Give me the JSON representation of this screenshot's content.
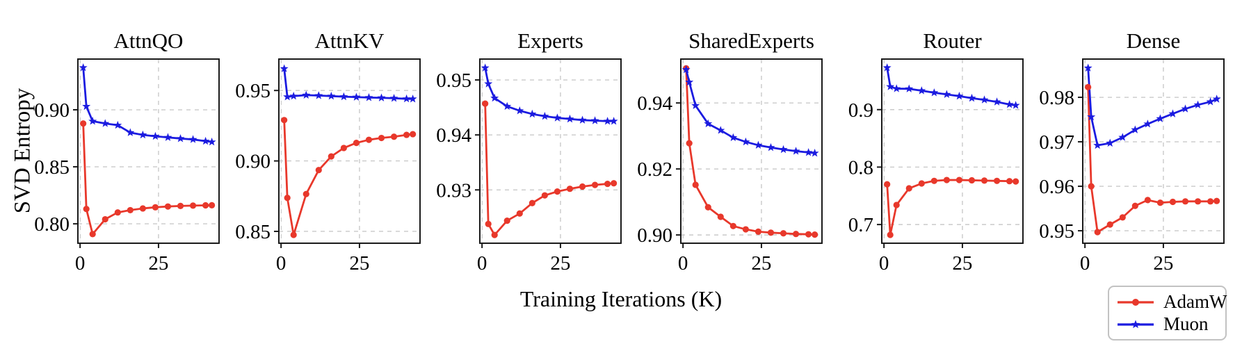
{
  "figure": {
    "ylabel": "SVD Entropy",
    "xlabel": "Training Iterations (K)",
    "colors": {
      "adamw": "#e8382b",
      "muon": "#1b1be0",
      "grid": "#c9c9c9",
      "frame": "#1a1a1a"
    },
    "legend_items": [
      {
        "label": "AdamW",
        "color": "#e8382b",
        "marker": "circle"
      },
      {
        "label": "Muon",
        "color": "#1b1be0",
        "marker": "star"
      }
    ]
  },
  "chart_data": [
    {
      "type": "line",
      "title": "AttnQO",
      "x": [
        1,
        2,
        4,
        8,
        12,
        16,
        20,
        24,
        28,
        32,
        36,
        40,
        42
      ],
      "xticks": [
        0,
        25
      ],
      "xtick_labels": [
        "0",
        "25"
      ],
      "xlim": [
        -0.7,
        44.3
      ],
      "yticks": [
        0.8,
        0.85,
        0.9
      ],
      "ytick_labels": [
        "0.80",
        "0.85",
        "0.90"
      ],
      "ylim": [
        0.783,
        0.9445
      ],
      "grid": true,
      "legend_position": "figure-bottom-right",
      "series": [
        {
          "name": "AdamW",
          "color": "#e8382b",
          "marker": "circle",
          "values": [
            0.888,
            0.813,
            0.791,
            0.804,
            0.81,
            0.812,
            0.8135,
            0.8145,
            0.8152,
            0.8157,
            0.816,
            0.8162,
            0.8163
          ]
        },
        {
          "name": "Muon",
          "color": "#1b1be0",
          "marker": "star",
          "values": [
            0.937,
            0.903,
            0.89,
            0.888,
            0.8865,
            0.88,
            0.878,
            0.8768,
            0.8758,
            0.8748,
            0.874,
            0.8725,
            0.8718
          ]
        }
      ]
    },
    {
      "type": "line",
      "title": "AttnKV",
      "x": [
        1,
        2,
        4,
        8,
        12,
        16,
        20,
        24,
        28,
        32,
        36,
        40,
        42
      ],
      "xticks": [
        0,
        25
      ],
      "xtick_labels": [
        "0",
        "25"
      ],
      "xlim": [
        -0.7,
        44.3
      ],
      "yticks": [
        0.85,
        0.9,
        0.95
      ],
      "ytick_labels": [
        "0.85",
        "0.90",
        "0.95"
      ],
      "ylim": [
        0.8416,
        0.9723
      ],
      "grid": true,
      "series": [
        {
          "name": "AdamW",
          "color": "#e8382b",
          "marker": "circle",
          "values": [
            0.929,
            0.8738,
            0.8475,
            0.8765,
            0.8935,
            0.9032,
            0.9092,
            0.9128,
            0.915,
            0.9163,
            0.9172,
            0.9185,
            0.919
          ]
        },
        {
          "name": "Muon",
          "color": "#1b1be0",
          "marker": "star",
          "values": [
            0.9655,
            0.9455,
            0.946,
            0.9467,
            0.9464,
            0.946,
            0.9456,
            0.9453,
            0.945,
            0.9448,
            0.9445,
            0.9441,
            0.944
          ]
        }
      ]
    },
    {
      "type": "line",
      "title": "Experts",
      "x": [
        1,
        2,
        4,
        8,
        12,
        16,
        20,
        24,
        28,
        32,
        36,
        40,
        42
      ],
      "xticks": [
        0,
        25
      ],
      "xtick_labels": [
        "0",
        "25"
      ],
      "xlim": [
        -0.7,
        44.3
      ],
      "yticks": [
        0.93,
        0.94,
        0.95
      ],
      "ytick_labels": [
        "0.93",
        "0.94",
        "0.95"
      ],
      "ylim": [
        0.9203,
        0.9538
      ],
      "grid": true,
      "series": [
        {
          "name": "AdamW",
          "color": "#e8382b",
          "marker": "circle",
          "values": [
            0.9457,
            0.9238,
            0.9218,
            0.9244,
            0.9257,
            0.9276,
            0.929,
            0.9297,
            0.9302,
            0.9306,
            0.9309,
            0.9311,
            0.9312
          ]
        },
        {
          "name": "Muon",
          "color": "#1b1be0",
          "marker": "star",
          "values": [
            0.9522,
            0.9493,
            0.9467,
            0.9452,
            0.9444,
            0.9438,
            0.9434,
            0.9431,
            0.9429,
            0.9427,
            0.9426,
            0.9425,
            0.9425
          ]
        }
      ]
    },
    {
      "type": "line",
      "title": "SharedExperts",
      "x": [
        1,
        2,
        4,
        8,
        12,
        16,
        20,
        24,
        28,
        32,
        36,
        40,
        42
      ],
      "xticks": [
        0,
        25
      ],
      "xtick_labels": [
        "0",
        "25"
      ],
      "xlim": [
        -0.7,
        44.3
      ],
      "yticks": [
        0.9,
        0.92,
        0.94
      ],
      "ytick_labels": [
        "0.90",
        "0.92",
        "0.94"
      ],
      "ylim": [
        0.8975,
        0.9533
      ],
      "grid": true,
      "series": [
        {
          "name": "AdamW",
          "color": "#e8382b",
          "marker": "circle",
          "values": [
            0.9505,
            0.9278,
            0.9152,
            0.9084,
            0.9055,
            0.9027,
            0.9017,
            0.901,
            0.9007,
            0.9005,
            0.9003,
            0.9002,
            0.9001
          ]
        },
        {
          "name": "Muon",
          "color": "#1b1be0",
          "marker": "star",
          "values": [
            0.9501,
            0.9463,
            0.9392,
            0.9337,
            0.9317,
            0.9295,
            0.9282,
            0.9272,
            0.9265,
            0.9259,
            0.9254,
            0.925,
            0.9248
          ]
        }
      ]
    },
    {
      "type": "line",
      "title": "Router",
      "x": [
        1,
        2,
        4,
        8,
        12,
        16,
        20,
        24,
        28,
        32,
        36,
        40,
        42
      ],
      "xticks": [
        0,
        25
      ],
      "xtick_labels": [
        "0",
        "25"
      ],
      "xlim": [
        -0.7,
        44.3
      ],
      "yticks": [
        0.7,
        0.8,
        0.9
      ],
      "ytick_labels": [
        "0.7",
        "0.8",
        "0.9"
      ],
      "ylim": [
        0.6675,
        0.988
      ],
      "grid": true,
      "series": [
        {
          "name": "AdamW",
          "color": "#e8382b",
          "marker": "circle",
          "values": [
            0.77,
            0.682,
            0.734,
            0.763,
            0.7715,
            0.776,
            0.7775,
            0.7775,
            0.777,
            0.7765,
            0.776,
            0.7755,
            0.775
          ]
        },
        {
          "name": "Muon",
          "color": "#1b1be0",
          "marker": "star",
          "values": [
            0.973,
            0.94,
            0.9365,
            0.9362,
            0.933,
            0.9295,
            0.9265,
            0.9235,
            0.92,
            0.917,
            0.9135,
            0.909,
            0.9075
          ]
        }
      ]
    },
    {
      "type": "line",
      "title": "Dense",
      "x": [
        1,
        2,
        4,
        8,
        12,
        16,
        20,
        24,
        28,
        32,
        36,
        40,
        42
      ],
      "xticks": [
        0,
        25
      ],
      "xtick_labels": [
        "0",
        "25"
      ],
      "xlim": [
        -0.7,
        44.3
      ],
      "yticks": [
        0.95,
        0.96,
        0.97,
        0.98
      ],
      "ytick_labels": [
        "0.95",
        "0.96",
        "0.97",
        "0.98"
      ],
      "ylim": [
        0.9472,
        0.9886
      ],
      "grid": true,
      "series": [
        {
          "name": "AdamW",
          "color": "#e8382b",
          "marker": "circle",
          "values": [
            0.9823,
            0.96,
            0.9497,
            0.9514,
            0.953,
            0.9556,
            0.9569,
            0.9563,
            0.9565,
            0.9566,
            0.9566,
            0.9566,
            0.9567
          ]
        },
        {
          "name": "Muon",
          "color": "#1b1be0",
          "marker": "star",
          "values": [
            0.9866,
            0.9756,
            0.9692,
            0.9697,
            0.971,
            0.9727,
            0.974,
            0.9752,
            0.9763,
            0.9774,
            0.9783,
            0.979,
            0.9796
          ]
        }
      ]
    }
  ]
}
